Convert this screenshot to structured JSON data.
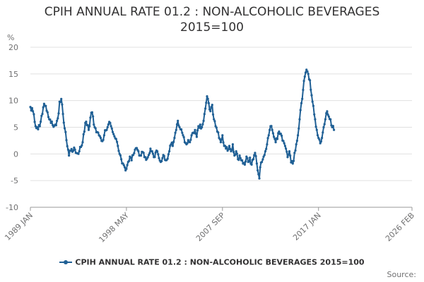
{
  "chart_data": {
    "type": "line",
    "title_lines": [
      "CPIH ANNUAL RATE 01.2 : NON-ALCOHOLIC BEVERAGES",
      "2015=100"
    ],
    "ylabel": "%",
    "ylim": [
      -10,
      20
    ],
    "yticks": [
      20,
      15,
      10,
      5,
      0,
      -5,
      -10
    ],
    "grid": true,
    "legend_position": "bottom",
    "x_tick_labels": [
      "1989 JAN",
      "1998 MAY",
      "2007 SEP",
      "2017 JAN",
      "2026 FEB"
    ],
    "x_tick_index": [
      0,
      112,
      224,
      336,
      445
    ],
    "source_label": "Source:",
    "series": [
      {
        "name": "CPIH ANNUAL RATE 01.2 : NON-ALCOHOLIC BEVERAGES 2015=100",
        "color": "#206095",
        "keypoints": [
          [
            0,
            8.8
          ],
          [
            3,
            8.0
          ],
          [
            5,
            6.0
          ],
          [
            8,
            5.0
          ],
          [
            11,
            5.2
          ],
          [
            14,
            7.5
          ],
          [
            16,
            9.4
          ],
          [
            18,
            9.0
          ],
          [
            20,
            7.8
          ],
          [
            22,
            6.5
          ],
          [
            24,
            5.8
          ],
          [
            26,
            5.4
          ],
          [
            29,
            5.5
          ],
          [
            31,
            6.2
          ],
          [
            33,
            7.6
          ],
          [
            34,
            9.8
          ],
          [
            36,
            10.3
          ],
          [
            38,
            7.5
          ],
          [
            40,
            4.8
          ],
          [
            42,
            2.6
          ],
          [
            44,
            0.8
          ],
          [
            45,
            -0.3
          ],
          [
            47,
            0.6
          ],
          [
            49,
            0.4
          ],
          [
            51,
            1.2
          ],
          [
            53,
            0.2
          ],
          [
            55,
            0.1
          ],
          [
            57,
            0.5
          ],
          [
            59,
            1.3
          ],
          [
            61,
            2.2
          ],
          [
            63,
            4.2
          ],
          [
            64,
            5.8
          ],
          [
            66,
            5.4
          ],
          [
            68,
            4.5
          ],
          [
            70,
            6.8
          ],
          [
            72,
            7.8
          ],
          [
            74,
            5.5
          ],
          [
            76,
            4.8
          ],
          [
            78,
            4.1
          ],
          [
            80,
            3.5
          ],
          [
            82,
            3.0
          ],
          [
            84,
            2.4
          ],
          [
            86,
            3.5
          ],
          [
            88,
            4.4
          ],
          [
            90,
            5.0
          ],
          [
            92,
            6.0
          ],
          [
            94,
            5.2
          ],
          [
            96,
            4.1
          ],
          [
            98,
            3.3
          ],
          [
            100,
            2.8
          ],
          [
            102,
            1.5
          ],
          [
            104,
            0.0
          ],
          [
            106,
            -1.0
          ],
          [
            108,
            -1.8
          ],
          [
            110,
            -2.5
          ],
          [
            112,
            -2.8
          ],
          [
            114,
            -1.5
          ],
          [
            116,
            -0.5
          ],
          [
            118,
            -1.2
          ],
          [
            120,
            -0.2
          ],
          [
            122,
            0.8
          ],
          [
            124,
            1.1
          ],
          [
            126,
            0.5
          ],
          [
            128,
            -0.3
          ],
          [
            130,
            0.4
          ],
          [
            132,
            0.2
          ],
          [
            134,
            -0.6
          ],
          [
            136,
            -0.9
          ],
          [
            138,
            -0.2
          ],
          [
            140,
            1.0
          ],
          [
            142,
            0.5
          ],
          [
            144,
            -0.6
          ],
          [
            146,
            0.3
          ],
          [
            148,
            0.5
          ],
          [
            150,
            -0.8
          ],
          [
            152,
            -1.5
          ],
          [
            154,
            -0.8
          ],
          [
            156,
            -0.4
          ],
          [
            158,
            -1.2
          ],
          [
            160,
            -0.9
          ],
          [
            162,
            0.5
          ],
          [
            164,
            1.8
          ],
          [
            166,
            1.5
          ],
          [
            168,
            3.0
          ],
          [
            170,
            4.5
          ],
          [
            172,
            6.2
          ],
          [
            174,
            5.0
          ],
          [
            176,
            4.6
          ],
          [
            178,
            3.5
          ],
          [
            180,
            2.2
          ],
          [
            182,
            1.8
          ],
          [
            184,
            2.6
          ],
          [
            186,
            2.2
          ],
          [
            188,
            3.5
          ],
          [
            190,
            4.0
          ],
          [
            192,
            4.5
          ],
          [
            194,
            3.2
          ],
          [
            196,
            5.2
          ],
          [
            198,
            5.5
          ],
          [
            200,
            5.0
          ],
          [
            202,
            6.2
          ],
          [
            204,
            8.5
          ],
          [
            206,
            10.8
          ],
          [
            208,
            9.5
          ],
          [
            210,
            8.0
          ],
          [
            212,
            9.2
          ],
          [
            214,
            6.5
          ],
          [
            216,
            5.2
          ],
          [
            218,
            4.2
          ],
          [
            220,
            3.0
          ],
          [
            222,
            2.2
          ],
          [
            224,
            3.5
          ],
          [
            226,
            1.5
          ],
          [
            228,
            1.0
          ],
          [
            230,
            0.6
          ],
          [
            232,
            1.5
          ],
          [
            234,
            0.5
          ],
          [
            236,
            1.8
          ],
          [
            238,
            -0.3
          ],
          [
            240,
            0.5
          ],
          [
            242,
            -1.0
          ],
          [
            244,
            -0.3
          ],
          [
            246,
            -1.2
          ],
          [
            248,
            -1.8
          ],
          [
            250,
            -2.0
          ],
          [
            252,
            -0.5
          ],
          [
            254,
            -1.5
          ],
          [
            256,
            -0.7
          ],
          [
            258,
            -2.0
          ],
          [
            260,
            -1.0
          ],
          [
            262,
            0.2
          ],
          [
            264,
            -1.8
          ],
          [
            266,
            -3.8
          ],
          [
            267,
            -4.6
          ],
          [
            268,
            -2.5
          ],
          [
            270,
            -1.5
          ],
          [
            272,
            -0.5
          ],
          [
            274,
            0.5
          ],
          [
            276,
            1.8
          ],
          [
            278,
            3.5
          ],
          [
            280,
            5.2
          ],
          [
            282,
            4.5
          ],
          [
            284,
            3.2
          ],
          [
            286,
            2.2
          ],
          [
            288,
            2.8
          ],
          [
            290,
            4.2
          ],
          [
            292,
            3.8
          ],
          [
            294,
            2.5
          ],
          [
            296,
            2.0
          ],
          [
            298,
            1.0
          ],
          [
            300,
            -0.6
          ],
          [
            302,
            0.5
          ],
          [
            304,
            -1.6
          ],
          [
            306,
            -1.8
          ],
          [
            308,
            0.2
          ],
          [
            310,
            1.8
          ],
          [
            312,
            3.5
          ],
          [
            314,
            6.5
          ],
          [
            316,
            9.5
          ],
          [
            318,
            12.0
          ],
          [
            320,
            14.5
          ],
          [
            322,
            15.8
          ],
          [
            324,
            15.0
          ],
          [
            326,
            13.8
          ],
          [
            328,
            11.0
          ],
          [
            330,
            9.0
          ],
          [
            332,
            6.5
          ],
          [
            334,
            4.5
          ],
          [
            336,
            3.0
          ],
          [
            338,
            2.0
          ],
          [
            340,
            3.0
          ],
          [
            342,
            5.0
          ],
          [
            344,
            6.5
          ],
          [
            346,
            8.0
          ],
          [
            348,
            7.0
          ],
          [
            350,
            6.5
          ],
          [
            352,
            5.0
          ],
          [
            354,
            4.5
          ]
        ]
      }
    ]
  }
}
